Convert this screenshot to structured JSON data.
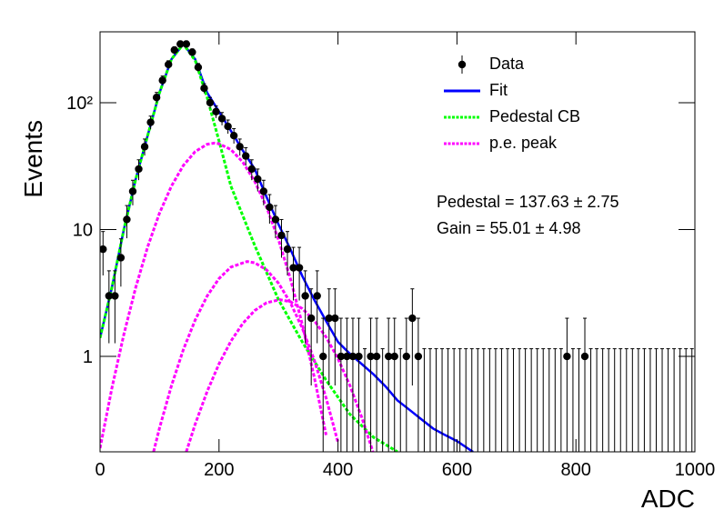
{
  "chart_data": {
    "type": "histogram-fit",
    "x_label": "ADC",
    "y_label": "Events",
    "log_y": true,
    "xlim": [
      0,
      1000
    ],
    "ylim": [
      0.177,
      362
    ],
    "xticks": [
      0,
      200,
      400,
      600,
      800,
      1000
    ],
    "yticks": [
      1,
      10,
      {
        "value": 100,
        "label": "10²"
      }
    ],
    "annotations": [
      "Pedestal = 137.63 ± 2.75",
      "Gain = 55.01 ± 4.98"
    ],
    "points": {
      "name": "Data",
      "color": "#000000",
      "x": [
        5,
        15,
        25,
        35,
        45,
        55,
        65,
        75,
        85,
        95,
        105,
        115,
        125,
        135,
        145,
        155,
        165,
        175,
        185,
        195,
        205,
        215,
        225,
        235,
        245,
        255,
        265,
        275,
        285,
        295,
        305,
        315,
        325,
        335,
        345,
        355,
        365,
        375,
        385,
        395,
        405,
        415,
        425,
        435,
        445,
        455,
        465,
        475,
        485,
        495,
        505,
        515,
        525,
        535,
        545,
        555,
        565,
        575,
        585,
        595,
        605,
        615,
        625,
        635,
        645,
        655,
        665,
        675,
        685,
        695,
        705,
        715,
        725,
        735,
        745,
        755,
        765,
        775,
        785,
        795,
        805,
        815,
        825,
        835,
        845,
        855,
        865,
        875,
        885,
        895,
        905,
        915,
        925,
        935,
        945,
        955,
        965,
        975,
        985,
        995
      ],
      "values": [
        7,
        3,
        3,
        6,
        12,
        20,
        30,
        45,
        70,
        110,
        150,
        200,
        260,
        290,
        290,
        250,
        190,
        130,
        100,
        85,
        75,
        65,
        55,
        45,
        38,
        30,
        25,
        20,
        15,
        12,
        9,
        7,
        5,
        5,
        3,
        2,
        3,
        1,
        2,
        2,
        1,
        1,
        1,
        1,
        0,
        1,
        1,
        0,
        1,
        1,
        0,
        1,
        2,
        1,
        0,
        0,
        0,
        0,
        0,
        0,
        0,
        0,
        0,
        0,
        0,
        0,
        0,
        0,
        0,
        0,
        0,
        0,
        0,
        0,
        0,
        0,
        0,
        0,
        1,
        0,
        0,
        1,
        0,
        0,
        0,
        0,
        0,
        0,
        0,
        0,
        0,
        0,
        0,
        0,
        0,
        0,
        0,
        0,
        0,
        0
      ],
      "errors": [
        2.65,
        1.73,
        1.73,
        2.45,
        3.46,
        4.47,
        5.48,
        6.71,
        8.37,
        10.49,
        12.25,
        14.14,
        16.12,
        17.03,
        17.03,
        15.81,
        13.78,
        11.4,
        10,
        9.22,
        8.66,
        8.06,
        7.42,
        6.71,
        6.16,
        5.48,
        5,
        4.47,
        3.87,
        3.46,
        3,
        2.65,
        2.24,
        2.24,
        1.73,
        1.41,
        1.73,
        1,
        1.41,
        1.41,
        1,
        1,
        1,
        1,
        1.15,
        1,
        1,
        1.15,
        1,
        1,
        1.15,
        1,
        1.41,
        1,
        1.15,
        1.15,
        1.15,
        1.15,
        1.15,
        1.15,
        1.15,
        1.15,
        1.15,
        1.15,
        1.15,
        1.15,
        1.15,
        1.15,
        1.15,
        1.15,
        1.15,
        1.15,
        1.15,
        1.15,
        1.15,
        1.15,
        1.15,
        1.15,
        1,
        1.15,
        1.15,
        1,
        1.15,
        1.15,
        1.15,
        1.15,
        1.15,
        1.15,
        1.15,
        1.15,
        1.15,
        1.15,
        1.15,
        1.15,
        1.15,
        1.15,
        1.15,
        1.15,
        1.15,
        1.15
      ]
    },
    "series": [
      {
        "name": "Fit",
        "color": "#0000ff",
        "dash": false,
        "curves": [
          {
            "x": [
              0,
              20,
              40,
              60,
              80,
              100,
              120,
              140,
              160,
              180,
              200,
              220,
              240,
              260,
              280,
              300,
              320,
              340,
              360,
              380,
              400,
              420,
              440,
              460,
              480,
              500,
              520,
              540,
              560,
              580,
              600,
              627
            ],
            "values": [
              1.4,
              3.5,
              10,
              25,
              55,
              120,
              220,
              290,
              220,
              120,
              85,
              60,
              42,
              30,
              18,
              11,
              7,
              4.3,
              2.8,
              1.9,
              1.3,
              1.05,
              0.87,
              0.72,
              0.58,
              0.45,
              0.38,
              0.32,
              0.27,
              0.24,
              0.215,
              0.177
            ]
          }
        ]
      },
      {
        "name": "Pedestal CB",
        "color": "#00ff00",
        "dash": true,
        "curves": [
          {
            "x": [
              0,
              20,
              40,
              60,
              80,
              100,
              120,
              140,
              160,
              180,
              200,
              220,
              260,
              300,
              340,
              380,
              420,
              460,
              500
            ],
            "values": [
              1.4,
              3.5,
              10,
              25,
              55,
              120,
              220,
              290,
              215,
              110,
              50,
              22,
              7.5,
              2.8,
              1.3,
              0.65,
              0.35,
              0.23,
              0.177
            ]
          }
        ]
      },
      {
        "name": "p.e. peak",
        "color": "#ff00ff",
        "dash": true,
        "curves": [
          {
            "x": [
              0,
              20,
              40,
              60,
              80,
              100,
              120,
              140,
              160,
              180,
              192,
              200,
              220,
              240,
              260,
              280,
              300,
              320,
              340,
              360,
              380
            ],
            "values": [
              0.189,
              0.565,
              1.49,
              3.5,
              7.29,
              13.5,
              22,
              32,
              41.2,
              47,
              48,
              47.5,
              42.7,
              34,
              24,
              15,
              8.33,
              4.1,
              1.79,
              0.69,
              0.24
            ]
          },
          {
            "x": [
              90,
              100,
              120,
              140,
              160,
              180,
              200,
              220,
              247,
              260,
              280,
              300,
              320,
              340,
              360,
              380,
              400
            ],
            "values": [
              0.177,
              0.273,
              0.587,
              1.13,
              1.94,
              2.99,
              4.11,
              5.06,
              5.6,
              5.47,
              4.81,
              3.78,
              2.65,
              1.67,
              0.94,
              0.47,
              0.21
            ]
          },
          {
            "x": [
              145,
              160,
              180,
              200,
              220,
              240,
              260,
              280,
              302,
              320,
              340,
              360,
              380,
              400,
              420,
              440,
              460
            ],
            "values": [
              0.177,
              0.293,
              0.529,
              0.873,
              1.32,
              1.82,
              2.3,
              2.65,
              2.8,
              2.7,
              2.38,
              1.92,
              1.42,
              0.96,
              0.59,
              0.33,
              0.17
            ]
          }
        ]
      }
    ],
    "legend": "top-right"
  }
}
